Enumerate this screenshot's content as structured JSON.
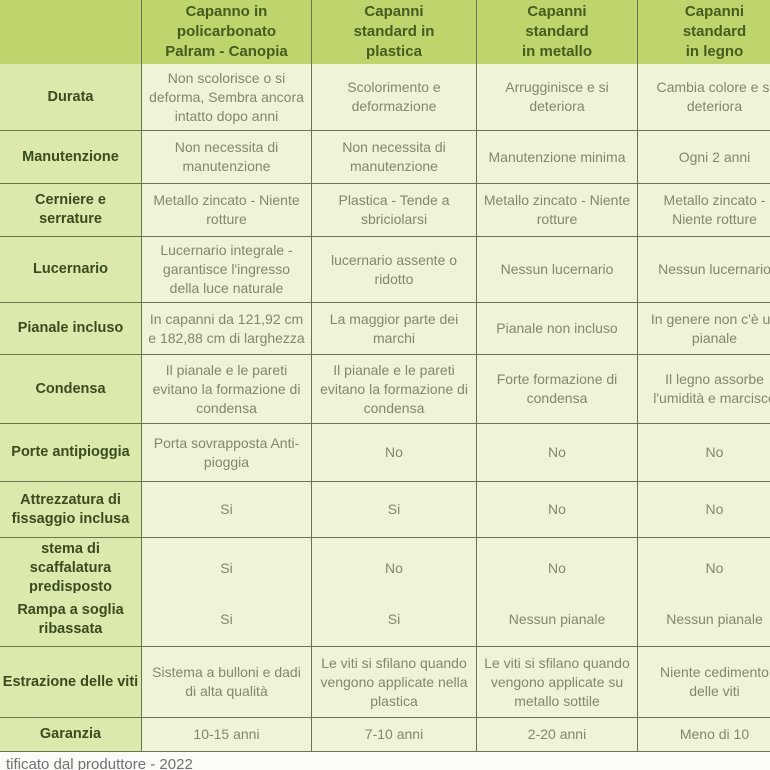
{
  "theme": {
    "header_bg": "#bed56d",
    "label_bg": "#dce9ad",
    "cell_bg": "#eef4d8",
    "border": "#6b7452",
    "header_text": "#455c1e",
    "cell_text": "#7f896d"
  },
  "header": {
    "cols": [
      "Capanno in\npolicarbonato\nPalram - Canopia",
      "Capanni\nstandard in\nplastica",
      "Capanni\nstandard\nin metallo",
      "Capanni\nstandard\nin legno"
    ]
  },
  "rows": [
    {
      "label": "Durata",
      "values": [
        "Non scolorisce o si deforma, Sembra ancora intatto dopo anni",
        "Scolorimento e deformazione",
        "Arrugginisce e si deteriora",
        "Cambia colore e si deteriora"
      ]
    },
    {
      "label": "Manutenzione",
      "values": [
        "Non necessita di manutenzione",
        "Non necessita di manutenzione",
        "Manutenzione minima",
        "Ogni 2 anni"
      ]
    },
    {
      "label": "Cerniere e serrature",
      "values": [
        "Metallo zincato - Niente rotture",
        "Plastica - Tende a sbriciolarsi",
        "Metallo zincato - Niente rotture",
        "Metallo zincato - Niente rotture"
      ]
    },
    {
      "label": "Lucernario",
      "values": [
        "Lucernario integrale - garantisce l'ingresso della luce naturale",
        "lucernario assente o ridotto",
        "Nessun lucernario",
        "Nessun lucernario"
      ]
    },
    {
      "label": "Pianale incluso",
      "values": [
        "In capanni da 121,92 cm e 182,88 cm di larghezza",
        "La maggior parte dei marchi",
        "Pianale non incluso",
        "In genere non c'è un pianale"
      ]
    },
    {
      "label": "Condensa",
      "values": [
        "Il pianale e le pareti evitano la formazione di condensa",
        "Il pianale e le pareti evitano la formazione di condensa",
        "Forte formazione di condensa",
        "Il legno assorbe l'umidità e marcisce"
      ]
    },
    {
      "label": "Porte antipioggia",
      "values": [
        "Porta sovrapposta Anti-pioggia",
        "No",
        "No",
        "No"
      ]
    },
    {
      "label": "Attrezzatura di fissaggio inclusa",
      "values": [
        "Si",
        "Si",
        "No",
        "No"
      ]
    },
    {
      "label": "stema di scaffalatura predisposto",
      "values": [
        "Si",
        "No",
        "No",
        "No"
      ]
    },
    {
      "label": "Rampa a soglia ribassata",
      "values": [
        "Si",
        "Si",
        "Nessun pianale",
        "Nessun pianale"
      ]
    },
    {
      "label": "Estrazione delle viti",
      "values": [
        "Sistema a bulloni e dadi di alta qualità",
        "Le viti si sfilano quando vengono applicate nella plastica",
        "Le viti si sfilano quando vengono applicate su metallo sottile",
        "Niente cedimento delle viti"
      ]
    },
    {
      "label": "Garanzia",
      "values": [
        "10-15 anni",
        "7-10 anni",
        "2-20 anni",
        "Meno di 10"
      ]
    }
  ],
  "footer": {
    "text": "tificato dal produttore - 2022"
  }
}
